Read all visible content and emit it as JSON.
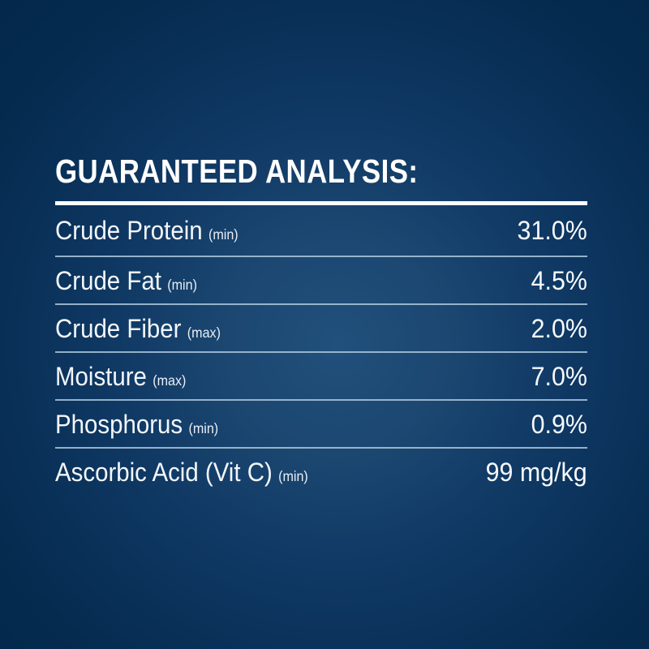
{
  "panel": {
    "title": "GUARANTEED ANALYSIS:",
    "rows": [
      {
        "label": "Crude Protein",
        "qualifier": "(min)",
        "value": "31.0%"
      },
      {
        "label": "Crude Fat",
        "qualifier": "(min)",
        "value": "4.5%"
      },
      {
        "label": "Crude Fiber",
        "qualifier": "(max)",
        "value": "2.0%"
      },
      {
        "label": "Moisture",
        "qualifier": "(max)",
        "value": "7.0%"
      },
      {
        "label": "Phosphorus",
        "qualifier": "(min)",
        "value": "0.9%"
      },
      {
        "label": "Ascorbic Acid (Vit C)",
        "qualifier": "(min)",
        "value": "99 mg/kg"
      }
    ],
    "colors": {
      "background_edge": "#032749",
      "background_center": "#21507c",
      "text": "#f2f6fa",
      "title_rule": "#ffffff",
      "row_separator": "#adc7dd"
    }
  }
}
